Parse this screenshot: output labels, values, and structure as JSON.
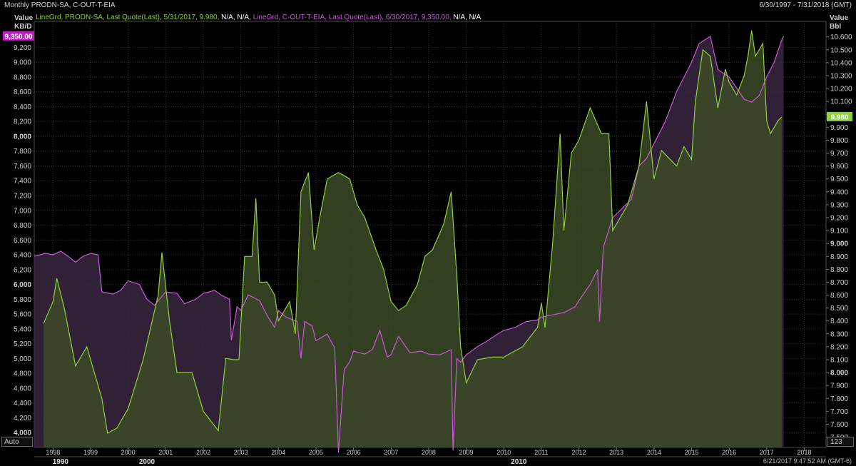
{
  "header": {
    "title": "Monthly PRODN-SA, C-OUT-T-EIA",
    "date_range": "6/30/1997 - 7/31/2018 (GMT)"
  },
  "legend": {
    "series1": "LineGrd, PRODN-SA, Last Quote(Last),  5/31/2017, 9.980,",
    "series1_na": "N/A, N/A,",
    "series2": "LineGrd, C-OUT-T-EIA, Last Quote(Last),  6/30/2017, 9,350.00,",
    "series2_na": "N/A, N/A"
  },
  "left_axis": {
    "title_line1": "Value",
    "title_line2": "KB/D"
  },
  "right_axis": {
    "title_line1": "Value",
    "title_line2": "Bbl"
  },
  "buttons": {
    "auto": "Auto",
    "num": "123"
  },
  "timestamp": "6/21/2017 9:47:52 AM  (GMT-6)",
  "colors": {
    "green": "#8fd13f",
    "purple": "#c85ad8",
    "fill_green": "#3b4a26",
    "fill_purple": "#3a2740",
    "fill_overlap": "#3f3a3a",
    "grid": "#383838",
    "tag_green": "#8fd13f",
    "tag_purple": "#c020c0"
  },
  "chart_data": {
    "type": "area",
    "x_range": [
      "1997-06-30",
      "2018-07-31"
    ],
    "x_ticks": [
      "1998",
      "1999",
      "2000",
      "2001",
      "2002",
      "2003",
      "2004",
      "2005",
      "2006",
      "2007",
      "2008",
      "2009",
      "2010",
      "2011",
      "2012",
      "2013",
      "2014",
      "2015",
      "2016",
      "2017",
      "2018"
    ],
    "decade_labels": [
      "1990",
      "2000",
      "2010"
    ],
    "left_ticks": [
      "4,000",
      "4,200",
      "4,400",
      "4,600",
      "4,800",
      "5,000",
      "5,200",
      "5,400",
      "5,600",
      "5,800",
      "6,000",
      "6,200",
      "6,400",
      "6,600",
      "6,800",
      "7,000",
      "7,200",
      "7,400",
      "7,600",
      "7,800",
      "8,000",
      "8,200",
      "8,400",
      "8,600",
      "8,800",
      "9,000",
      "9,200"
    ],
    "right_ticks": [
      "7.500",
      "7.600",
      "7.700",
      "7.800",
      "7.900",
      "8.000",
      "8.100",
      "8.200",
      "8.300",
      "8.400",
      "8.500",
      "8.600",
      "8.700",
      "8.800",
      "8.900",
      "9.000",
      "9.100",
      "9.200",
      "9.300",
      "9.400",
      "9.500",
      "9.600",
      "9.700",
      "9.800",
      "9.900",
      "10.000",
      "10.100",
      "10.200",
      "10.300",
      "10.400",
      "10.500",
      "10.600"
    ],
    "left_ylim": [
      3800,
      9550
    ],
    "right_ylim": [
      7.42,
      10.72
    ],
    "last_values": {
      "purple_tag": "9,350.00",
      "green_tag": "9.980"
    },
    "series": [
      {
        "name": "C-OUT-T-EIA",
        "axis": "left",
        "points": [
          [
            1997.5,
            6380
          ],
          [
            1997.8,
            6420
          ],
          [
            1998.0,
            6400
          ],
          [
            1998.2,
            6450
          ],
          [
            1998.4,
            6380
          ],
          [
            1998.6,
            6300
          ],
          [
            1998.8,
            6380
          ],
          [
            1999.0,
            6420
          ],
          [
            1999.2,
            6400
          ],
          [
            1999.3,
            5900
          ],
          [
            1999.6,
            5870
          ],
          [
            1999.8,
            5920
          ],
          [
            2000.0,
            6050
          ],
          [
            2000.3,
            6000
          ],
          [
            2000.5,
            5800
          ],
          [
            2000.7,
            5720
          ],
          [
            2001.0,
            5900
          ],
          [
            2001.3,
            5880
          ],
          [
            2001.5,
            5740
          ],
          [
            2001.8,
            5800
          ],
          [
            2002.0,
            5880
          ],
          [
            2002.3,
            5920
          ],
          [
            2002.5,
            5850
          ],
          [
            2002.7,
            5800
          ],
          [
            2002.75,
            5250
          ],
          [
            2002.9,
            5700
          ],
          [
            2003.0,
            5650
          ],
          [
            2003.2,
            5860
          ],
          [
            2003.5,
            5780
          ],
          [
            2003.7,
            5580
          ],
          [
            2003.9,
            5420
          ],
          [
            2004.0,
            5650
          ],
          [
            2004.2,
            5560
          ],
          [
            2004.5,
            5500
          ],
          [
            2004.6,
            5000
          ],
          [
            2004.7,
            5500
          ],
          [
            2004.9,
            5440
          ],
          [
            2005.0,
            5240
          ],
          [
            2005.3,
            5330
          ],
          [
            2005.5,
            5140
          ],
          [
            2005.6,
            3730
          ],
          [
            2005.75,
            4850
          ],
          [
            2005.9,
            4960
          ],
          [
            2006.0,
            5100
          ],
          [
            2006.3,
            5060
          ],
          [
            2006.5,
            5120
          ],
          [
            2006.7,
            5380
          ],
          [
            2006.9,
            5020
          ],
          [
            2007.0,
            5050
          ],
          [
            2007.2,
            5300
          ],
          [
            2007.5,
            5080
          ],
          [
            2007.8,
            5100
          ],
          [
            2008.0,
            5060
          ],
          [
            2008.3,
            5050
          ],
          [
            2008.6,
            5120
          ],
          [
            2008.65,
            3760
          ],
          [
            2008.75,
            5000
          ],
          [
            2008.85,
            4950
          ],
          [
            2009.0,
            5050
          ],
          [
            2009.3,
            5160
          ],
          [
            2009.6,
            5250
          ],
          [
            2009.8,
            5320
          ],
          [
            2010.0,
            5380
          ],
          [
            2010.3,
            5420
          ],
          [
            2010.6,
            5500
          ],
          [
            2010.9,
            5520
          ],
          [
            2011.0,
            5560
          ],
          [
            2011.3,
            5590
          ],
          [
            2011.6,
            5620
          ],
          [
            2011.9,
            5700
          ],
          [
            2012.0,
            5780
          ],
          [
            2012.3,
            6000
          ],
          [
            2012.5,
            6200
          ],
          [
            2012.55,
            5500
          ],
          [
            2012.65,
            6500
          ],
          [
            2012.9,
            6900
          ],
          [
            2013.2,
            7050
          ],
          [
            2013.4,
            7150
          ],
          [
            2013.6,
            7600
          ],
          [
            2013.8,
            7700
          ],
          [
            2014.0,
            7900
          ],
          [
            2014.3,
            8200
          ],
          [
            2014.6,
            8600
          ],
          [
            2014.8,
            8800
          ],
          [
            2015.0,
            9000
          ],
          [
            2015.2,
            9250
          ],
          [
            2015.35,
            9300
          ],
          [
            2015.5,
            9350
          ],
          [
            2015.7,
            8900
          ],
          [
            2016.0,
            8800
          ],
          [
            2016.2,
            8650
          ],
          [
            2016.4,
            8500
          ],
          [
            2016.6,
            8460
          ],
          [
            2016.8,
            8550
          ],
          [
            2017.0,
            8800
          ],
          [
            2017.2,
            9000
          ],
          [
            2017.4,
            9300
          ],
          [
            2017.45,
            9350
          ]
        ]
      },
      {
        "name": "PRODN-SA",
        "axis": "right",
        "points": [
          [
            1997.75,
            8.38
          ],
          [
            1998.0,
            8.55
          ],
          [
            1998.1,
            8.73
          ],
          [
            1998.3,
            8.5
          ],
          [
            1998.6,
            8.05
          ],
          [
            1998.9,
            8.2
          ],
          [
            1999.3,
            7.8
          ],
          [
            1999.45,
            7.53
          ],
          [
            1999.7,
            7.57
          ],
          [
            2000.0,
            7.72
          ],
          [
            2000.4,
            8.1
          ],
          [
            2000.8,
            8.6
          ],
          [
            2000.9,
            8.93
          ],
          [
            2001.1,
            8.4
          ],
          [
            2001.3,
            8.0
          ],
          [
            2001.7,
            8.0
          ],
          [
            2002.0,
            7.7
          ],
          [
            2002.4,
            7.55
          ],
          [
            2002.6,
            8.11
          ],
          [
            2002.8,
            8.1
          ],
          [
            2002.95,
            8.1
          ],
          [
            2003.1,
            8.9
          ],
          [
            2003.3,
            8.9
          ],
          [
            2003.4,
            9.35
          ],
          [
            2003.5,
            8.7
          ],
          [
            2003.7,
            8.7
          ],
          [
            2003.9,
            8.6
          ],
          [
            2004.0,
            8.4
          ],
          [
            2004.3,
            8.55
          ],
          [
            2004.45,
            8.3
          ],
          [
            2004.6,
            9.4
          ],
          [
            2004.8,
            9.55
          ],
          [
            2004.95,
            8.95
          ],
          [
            2005.1,
            9.2
          ],
          [
            2005.3,
            9.5
          ],
          [
            2005.6,
            9.55
          ],
          [
            2005.9,
            9.5
          ],
          [
            2006.1,
            9.3
          ],
          [
            2006.3,
            9.2
          ],
          [
            2006.6,
            8.95
          ],
          [
            2006.8,
            8.8
          ],
          [
            2007.0,
            8.55
          ],
          [
            2007.2,
            8.48
          ],
          [
            2007.4,
            8.52
          ],
          [
            2007.7,
            8.68
          ],
          [
            2007.9,
            8.9
          ],
          [
            2008.1,
            8.95
          ],
          [
            2008.4,
            9.15
          ],
          [
            2008.6,
            9.4
          ],
          [
            2008.75,
            8.75
          ],
          [
            2008.85,
            8.2
          ],
          [
            2009.0,
            7.92
          ],
          [
            2009.3,
            8.1
          ],
          [
            2009.7,
            8.12
          ],
          [
            2010.0,
            8.12
          ],
          [
            2010.5,
            8.2
          ],
          [
            2010.9,
            8.35
          ],
          [
            2011.0,
            8.54
          ],
          [
            2011.1,
            8.35
          ],
          [
            2011.3,
            9.0
          ],
          [
            2011.5,
            9.85
          ],
          [
            2011.6,
            9.1
          ],
          [
            2011.8,
            9.7
          ],
          [
            2012.0,
            9.8
          ],
          [
            2012.3,
            10.05
          ],
          [
            2012.6,
            9.85
          ],
          [
            2012.8,
            9.85
          ],
          [
            2012.9,
            9.1
          ],
          [
            2013.3,
            9.3
          ],
          [
            2013.6,
            9.6
          ],
          [
            2013.8,
            10.1
          ],
          [
            2014.0,
            9.5
          ],
          [
            2014.2,
            9.72
          ],
          [
            2014.6,
            9.6
          ],
          [
            2014.8,
            9.75
          ],
          [
            2015.0,
            9.65
          ],
          [
            2015.1,
            10.1
          ],
          [
            2015.3,
            10.5
          ],
          [
            2015.5,
            10.45
          ],
          [
            2015.7,
            10.05
          ],
          [
            2015.9,
            10.35
          ],
          [
            2016.0,
            10.25
          ],
          [
            2016.2,
            10.15
          ],
          [
            2016.4,
            10.3
          ],
          [
            2016.5,
            10.45
          ],
          [
            2016.6,
            10.65
          ],
          [
            2016.7,
            10.45
          ],
          [
            2016.9,
            10.55
          ],
          [
            2017.0,
            9.95
          ],
          [
            2017.1,
            9.85
          ],
          [
            2017.3,
            9.95
          ],
          [
            2017.4,
            9.98
          ]
        ]
      }
    ]
  }
}
